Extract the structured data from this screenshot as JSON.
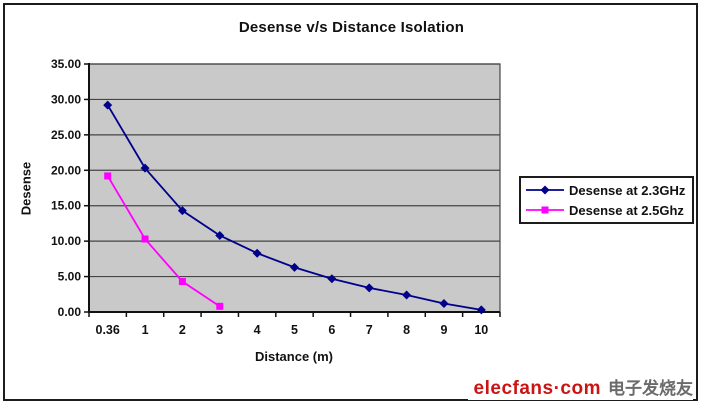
{
  "chart_data": {
    "type": "line",
    "title": "Desense v/s Distance Isolation",
    "xlabel": "Distance (m)",
    "ylabel": "Desense",
    "categories": [
      "0.36",
      "1",
      "2",
      "3",
      "4",
      "5",
      "6",
      "7",
      "8",
      "9",
      "10"
    ],
    "ylim": [
      0,
      35
    ],
    "ytick_step": 5,
    "ytick_labels": [
      "0.00",
      "5.00",
      "10.00",
      "15.00",
      "20.00",
      "25.00",
      "30.00",
      "35.00"
    ],
    "grid": true,
    "legend_position": "right",
    "plot_bg_color": "#c9c9c9",
    "gridline_color": "#454545",
    "axis_color": "#111111",
    "series": [
      {
        "name": "Desense at 2.3GHz",
        "color": "#00008b",
        "marker": "diamond",
        "values": [
          29.2,
          20.3,
          14.3,
          10.8,
          8.3,
          6.3,
          4.7,
          3.4,
          2.4,
          1.2,
          0.3
        ]
      },
      {
        "name": "Desense at 2.5Ghz",
        "color": "#ff00ff",
        "marker": "square",
        "values": [
          19.2,
          10.3,
          4.3,
          0.8
        ]
      }
    ]
  },
  "watermark": {
    "brand": "elecfans·com",
    "brand_color": "#cc1414",
    "cn": "电子发烧友",
    "cn_color": "#6b6b6b"
  }
}
